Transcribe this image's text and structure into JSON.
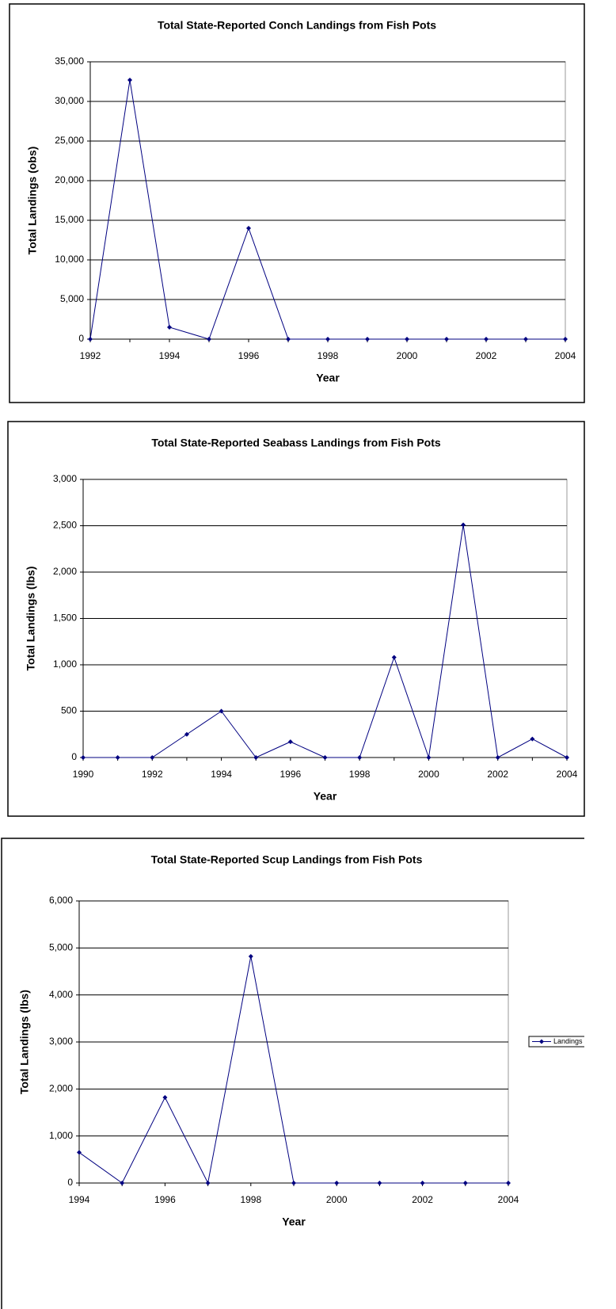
{
  "chart_data": [
    {
      "type": "line",
      "title": "Total State-Reported Conch Landings from Fish Pots",
      "x_label": "Year",
      "y_label": "Total Landings (obs)",
      "x": [
        1992,
        1993,
        1994,
        1995,
        1996,
        1997,
        1998,
        1999,
        2000,
        2001,
        2002,
        2003,
        2004
      ],
      "values": [
        0,
        32700,
        1500,
        0,
        14000,
        0,
        0,
        0,
        0,
        0,
        0,
        0,
        0
      ],
      "color": "#000080",
      "xlim": [
        1992,
        2004
      ],
      "xticks": [
        1992,
        1994,
        1996,
        1998,
        2000,
        2002,
        2004
      ],
      "ylim": [
        0,
        35000
      ],
      "yticks": [
        0,
        {
          "value": 5000,
          "label": "5,000"
        },
        {
          "value": 10000,
          "label": "10,000"
        },
        {
          "value": 15000,
          "label": "15,000"
        },
        {
          "value": 20000,
          "label": "20,000"
        },
        {
          "value": 25000,
          "label": "25,000"
        },
        {
          "value": 30000,
          "label": "30,000"
        },
        {
          "value": 35000,
          "label": "35,000"
        }
      ],
      "grid": true
    },
    {
      "type": "line",
      "title": "Total State-Reported Seabass Landings from Fish Pots",
      "x_label": "Year",
      "y_label": "Total Landings (lbs)",
      "x": [
        1990,
        1991,
        1992,
        1993,
        1994,
        1995,
        1996,
        1997,
        1998,
        1999,
        2000,
        2001,
        2002,
        2003,
        2004
      ],
      "values": [
        0,
        0,
        0,
        250,
        500,
        0,
        170,
        0,
        0,
        1080,
        0,
        2510,
        0,
        200,
        0
      ],
      "color": "#000080",
      "xlim": [
        1990,
        2004
      ],
      "xticks": [
        1990,
        1992,
        1994,
        1996,
        1998,
        2000,
        2002,
        2004
      ],
      "ylim": [
        0,
        3000
      ],
      "yticks": [
        0,
        500,
        {
          "value": 1000,
          "label": "1,000"
        },
        {
          "value": 1500,
          "label": "1,500"
        },
        {
          "value": 2000,
          "label": "2,000"
        },
        {
          "value": 2500,
          "label": "2,500"
        },
        {
          "value": 3000,
          "label": "3,000"
        }
      ],
      "grid": true
    },
    {
      "type": "line",
      "title": "Total State-Reported Scup Landings from Fish Pots",
      "x_label": "Year",
      "y_label": "Total Landings (lbs)",
      "x": [
        1994,
        1995,
        1996,
        1997,
        1998,
        1999,
        2000,
        2001,
        2002,
        2003,
        2004
      ],
      "series": [
        {
          "name": "Landings",
          "color": "#000080",
          "values": [
            650,
            0,
            1820,
            0,
            4820,
            0,
            0,
            0,
            0,
            0,
            0
          ]
        }
      ],
      "xlim": [
        1994,
        2004
      ],
      "xticks": [
        1994,
        1996,
        1998,
        2000,
        2002,
        2004
      ],
      "ylim": [
        0,
        6000
      ],
      "yticks": [
        0,
        {
          "value": 1000,
          "label": "1,000"
        },
        {
          "value": 2000,
          "label": "2,000"
        },
        {
          "value": 3000,
          "label": "3,000"
        },
        {
          "value": 4000,
          "label": "4,000"
        },
        {
          "value": 5000,
          "label": "5,000"
        },
        {
          "value": 6000,
          "label": "6,000"
        }
      ],
      "grid": true,
      "legend": "right"
    }
  ]
}
